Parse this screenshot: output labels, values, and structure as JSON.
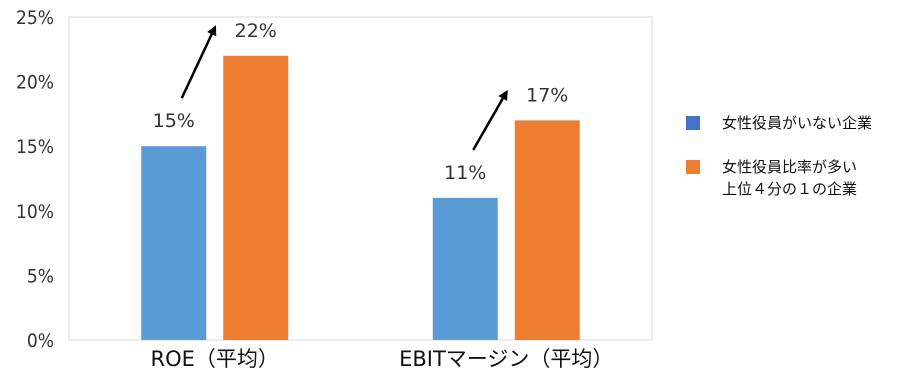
{
  "chart_data": {
    "type": "bar",
    "categories": [
      "ROE（平均）",
      "EBITマージン（平均）"
    ],
    "series": [
      {
        "name": "女性役員がいない企業",
        "values": [
          15,
          11
        ],
        "color": "#5b9bd5"
      },
      {
        "name": "女性役員比率が多い\n上位４分の１の企業",
        "values": [
          22,
          17
        ],
        "color": "#ed7d31"
      }
    ],
    "data_labels": [
      [
        "15%",
        "11%"
      ],
      [
        "22%",
        "17%"
      ]
    ],
    "ylim": [
      0,
      25
    ],
    "yticks": [
      "0%",
      "5%",
      "10%",
      "15%",
      "20%",
      "25%"
    ],
    "grid": false,
    "legend_position": "right",
    "annotations": [
      "arrow from first series bar to second series bar in each category"
    ],
    "title": "",
    "xlabel": "",
    "ylabel": ""
  }
}
